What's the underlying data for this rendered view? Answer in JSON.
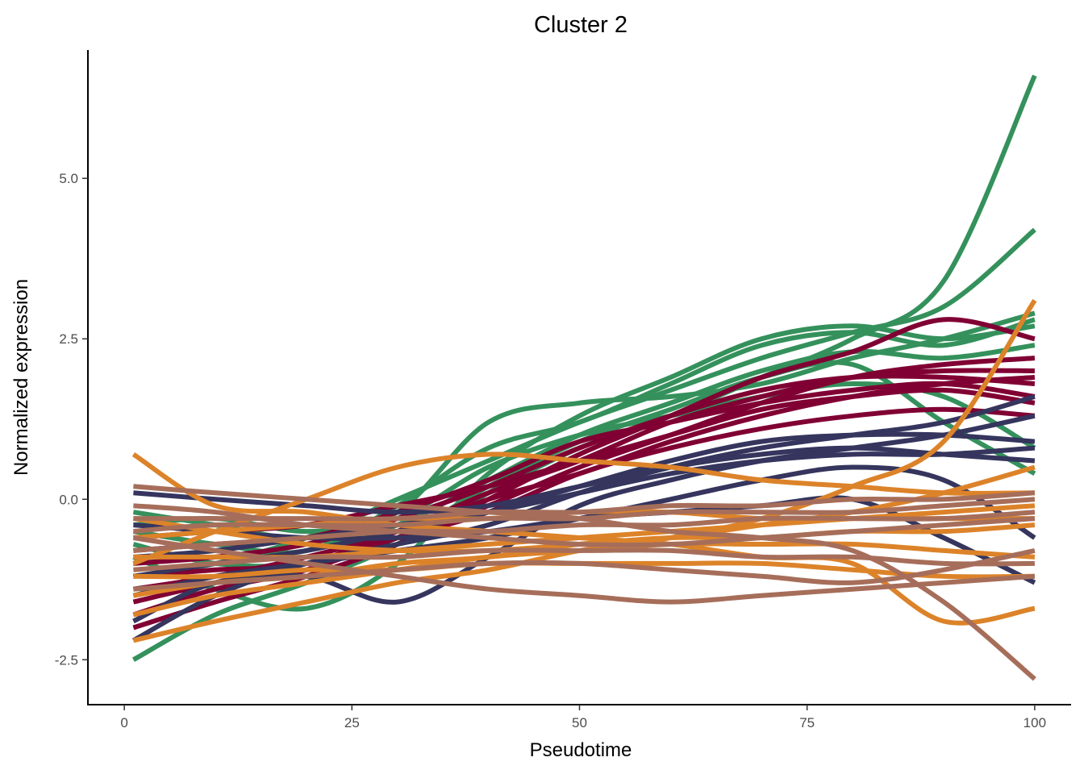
{
  "chart_data": {
    "type": "line",
    "title": "Cluster 2",
    "xlabel": "Pseudotime",
    "ylabel": "Normalized expression",
    "xlim": [
      -4,
      104
    ],
    "ylim": [
      -3.2,
      7.0
    ],
    "x_ticks": [
      0,
      25,
      50,
      75,
      100
    ],
    "x_tick_labels": [
      "0",
      "25",
      "50",
      "75",
      "100"
    ],
    "y_ticks": [
      -2.5,
      0.0,
      2.5,
      5.0
    ],
    "y_tick_labels": [
      "-2.5",
      "0.0",
      "2.5",
      "5.0"
    ],
    "grid": false,
    "legend": "none",
    "x": [
      1,
      10,
      20,
      30,
      40,
      50,
      60,
      70,
      80,
      90,
      100
    ],
    "colors": {
      "green": "#35915C",
      "crimson": "#800033",
      "navy": "#35355E",
      "orange": "#DC832A",
      "brown": "#A66E5A"
    },
    "series": [
      {
        "color": "green",
        "values": [
          -2.5,
          -1.8,
          -1.3,
          -0.7,
          0.1,
          0.8,
          1.3,
          1.9,
          2.5,
          3.4,
          6.6
        ]
      },
      {
        "color": "green",
        "values": [
          -1.2,
          -1.0,
          -0.6,
          0.0,
          0.6,
          1.2,
          1.7,
          2.2,
          2.6,
          3.0,
          4.2
        ]
      },
      {
        "color": "green",
        "values": [
          -0.2,
          -0.4,
          -0.6,
          -0.2,
          1.2,
          1.5,
          1.6,
          1.8,
          2.2,
          2.5,
          2.9
        ]
      },
      {
        "color": "green",
        "values": [
          -0.5,
          -0.7,
          -0.8,
          -0.1,
          0.8,
          1.2,
          1.8,
          2.4,
          2.6,
          2.4,
          2.8
        ]
      },
      {
        "color": "green",
        "values": [
          -0.9,
          -1.4,
          -1.7,
          -1.0,
          0.4,
          1.3,
          1.9,
          2.5,
          2.7,
          2.5,
          2.7
        ]
      },
      {
        "color": "green",
        "values": [
          -1.0,
          -0.9,
          -0.8,
          -0.4,
          0.3,
          1.0,
          1.5,
          2.0,
          2.3,
          2.2,
          2.4
        ]
      },
      {
        "color": "green",
        "values": [
          -0.4,
          -0.3,
          -0.5,
          -0.3,
          0.5,
          1.0,
          1.3,
          1.6,
          1.8,
          1.6,
          0.8
        ]
      },
      {
        "color": "green",
        "values": [
          -0.7,
          -1.0,
          -1.0,
          -0.6,
          0.2,
          0.9,
          1.4,
          1.9,
          2.1,
          1.2,
          0.4
        ]
      },
      {
        "color": "crimson",
        "values": [
          -2.0,
          -1.6,
          -1.2,
          -0.7,
          0.0,
          0.7,
          1.3,
          1.9,
          2.3,
          2.8,
          2.5
        ]
      },
      {
        "color": "crimson",
        "values": [
          -1.8,
          -1.4,
          -1.1,
          -0.6,
          -0.1,
          0.5,
          1.0,
          1.5,
          1.9,
          2.1,
          2.2
        ]
      },
      {
        "color": "crimson",
        "values": [
          -1.4,
          -1.2,
          -0.9,
          -0.5,
          0.1,
          0.6,
          1.2,
          1.6,
          1.9,
          2.0,
          2.0
        ]
      },
      {
        "color": "crimson",
        "values": [
          -1.0,
          -0.9,
          -0.7,
          -0.3,
          0.2,
          0.8,
          1.3,
          1.7,
          1.9,
          1.9,
          1.8
        ]
      },
      {
        "color": "crimson",
        "values": [
          -0.8,
          -0.7,
          -0.6,
          -0.2,
          0.3,
          0.9,
          1.2,
          1.5,
          1.7,
          1.8,
          1.6
        ]
      },
      {
        "color": "crimson",
        "values": [
          -0.6,
          -0.5,
          -0.4,
          -0.1,
          0.2,
          0.6,
          1.0,
          1.4,
          1.6,
          1.7,
          1.5
        ]
      },
      {
        "color": "crimson",
        "values": [
          -1.2,
          -1.1,
          -1.0,
          -0.5,
          0.0,
          0.4,
          0.9,
          1.3,
          1.6,
          1.8,
          1.9
        ]
      },
      {
        "color": "crimson",
        "values": [
          -1.6,
          -1.3,
          -1.0,
          -0.6,
          -0.2,
          0.4,
          0.8,
          1.1,
          1.3,
          1.4,
          1.3
        ]
      },
      {
        "color": "navy",
        "values": [
          -2.2,
          -1.5,
          -1.0,
          -0.7,
          -0.4,
          0.1,
          0.5,
          0.8,
          1.0,
          1.2,
          1.6
        ]
      },
      {
        "color": "navy",
        "values": [
          -1.9,
          -1.3,
          -1.2,
          -1.6,
          -0.9,
          -0.1,
          0.3,
          0.6,
          0.8,
          1.0,
          1.3
        ]
      },
      {
        "color": "navy",
        "values": [
          -1.2,
          -1.0,
          -0.8,
          -0.5,
          -0.2,
          0.2,
          0.6,
          0.9,
          1.0,
          1.0,
          0.9
        ]
      },
      {
        "color": "navy",
        "values": [
          0.1,
          0.0,
          -0.1,
          -0.2,
          -0.1,
          0.2,
          0.5,
          0.7,
          0.8,
          0.7,
          0.6
        ]
      },
      {
        "color": "navy",
        "values": [
          -0.9,
          -0.8,
          -0.6,
          -0.4,
          -0.2,
          0.1,
          0.4,
          0.6,
          0.7,
          0.7,
          0.8
        ]
      },
      {
        "color": "navy",
        "values": [
          -1.5,
          -1.2,
          -1.0,
          -0.8,
          -0.6,
          -0.3,
          0.0,
          0.3,
          0.5,
          0.3,
          -0.6
        ]
      },
      {
        "color": "navy",
        "values": [
          -0.4,
          -0.5,
          -0.6,
          -0.6,
          -0.5,
          -0.3,
          -0.2,
          -0.1,
          0.0,
          -0.6,
          -1.3
        ]
      },
      {
        "color": "orange",
        "values": [
          0.7,
          -0.1,
          -0.2,
          -0.4,
          -0.5,
          -0.6,
          -0.7,
          -0.9,
          -1.0,
          -1.9,
          -1.7
        ]
      },
      {
        "color": "orange",
        "values": [
          -2.2,
          -1.9,
          -1.6,
          -1.3,
          -1.1,
          -0.8,
          -0.6,
          -0.3,
          0.2,
          0.9,
          3.1
        ]
      },
      {
        "color": "orange",
        "values": [
          -1.0,
          -0.5,
          0.0,
          0.5,
          0.7,
          0.6,
          0.5,
          0.3,
          0.2,
          0.1,
          0.1
        ]
      },
      {
        "color": "orange",
        "values": [
          -1.5,
          -1.3,
          -1.2,
          -1.0,
          -0.9,
          -0.7,
          -0.6,
          -0.4,
          -0.2,
          0.1,
          0.5
        ]
      },
      {
        "color": "orange",
        "values": [
          -0.6,
          -0.5,
          -0.4,
          -0.3,
          -0.3,
          -0.2,
          -0.2,
          -0.3,
          -0.3,
          -0.3,
          -0.3
        ]
      },
      {
        "color": "orange",
        "values": [
          -1.2,
          -1.2,
          -1.1,
          -1.1,
          -1.0,
          -1.0,
          -1.0,
          -1.0,
          -1.1,
          -1.2,
          -1.2
        ]
      },
      {
        "color": "orange",
        "values": [
          -1.8,
          -1.5,
          -1.3,
          -1.1,
          -0.9,
          -0.8,
          -0.7,
          -0.7,
          -0.7,
          -0.8,
          -0.9
        ]
      },
      {
        "color": "orange",
        "values": [
          -0.3,
          -0.5,
          -0.7,
          -0.8,
          -0.8,
          -0.7,
          -0.6,
          -0.6,
          -0.5,
          -0.5,
          -0.4
        ]
      },
      {
        "color": "orange",
        "values": [
          -0.9,
          -0.9,
          -0.9,
          -0.8,
          -0.7,
          -0.6,
          -0.5,
          -0.4,
          -0.3,
          -0.2,
          -0.1
        ]
      },
      {
        "color": "brown",
        "values": [
          0.2,
          0.1,
          0.0,
          -0.1,
          -0.2,
          -0.3,
          -0.5,
          -0.6,
          -0.8,
          -1.6,
          -2.8
        ]
      },
      {
        "color": "brown",
        "values": [
          -0.6,
          -0.8,
          -1.0,
          -1.2,
          -1.4,
          -1.5,
          -1.6,
          -1.5,
          -1.4,
          -1.3,
          -1.2
        ]
      },
      {
        "color": "brown",
        "values": [
          -0.3,
          -0.3,
          -0.3,
          -0.3,
          -0.2,
          -0.2,
          -0.1,
          -0.1,
          0.0,
          0.0,
          0.1
        ]
      },
      {
        "color": "brown",
        "values": [
          -0.8,
          -0.7,
          -0.6,
          -0.5,
          -0.5,
          -0.4,
          -0.4,
          -0.3,
          -0.3,
          -0.3,
          -0.2
        ]
      },
      {
        "color": "brown",
        "values": [
          -1.1,
          -1.0,
          -0.9,
          -0.9,
          -0.8,
          -0.8,
          -0.8,
          -0.9,
          -0.9,
          -1.0,
          -1.0
        ]
      },
      {
        "color": "brown",
        "values": [
          -0.1,
          -0.2,
          -0.4,
          -0.5,
          -0.6,
          -0.7,
          -0.7,
          -0.6,
          -0.5,
          -0.4,
          -0.3
        ]
      },
      {
        "color": "brown",
        "values": [
          -1.4,
          -1.3,
          -1.2,
          -1.1,
          -1.0,
          -1.0,
          -1.1,
          -1.2,
          -1.3,
          -1.1,
          -0.8
        ]
      },
      {
        "color": "brown",
        "values": [
          -0.5,
          -0.4,
          -0.4,
          -0.4,
          -0.3,
          -0.3,
          -0.2,
          -0.2,
          -0.2,
          -0.1,
          0.0
        ]
      }
    ]
  }
}
